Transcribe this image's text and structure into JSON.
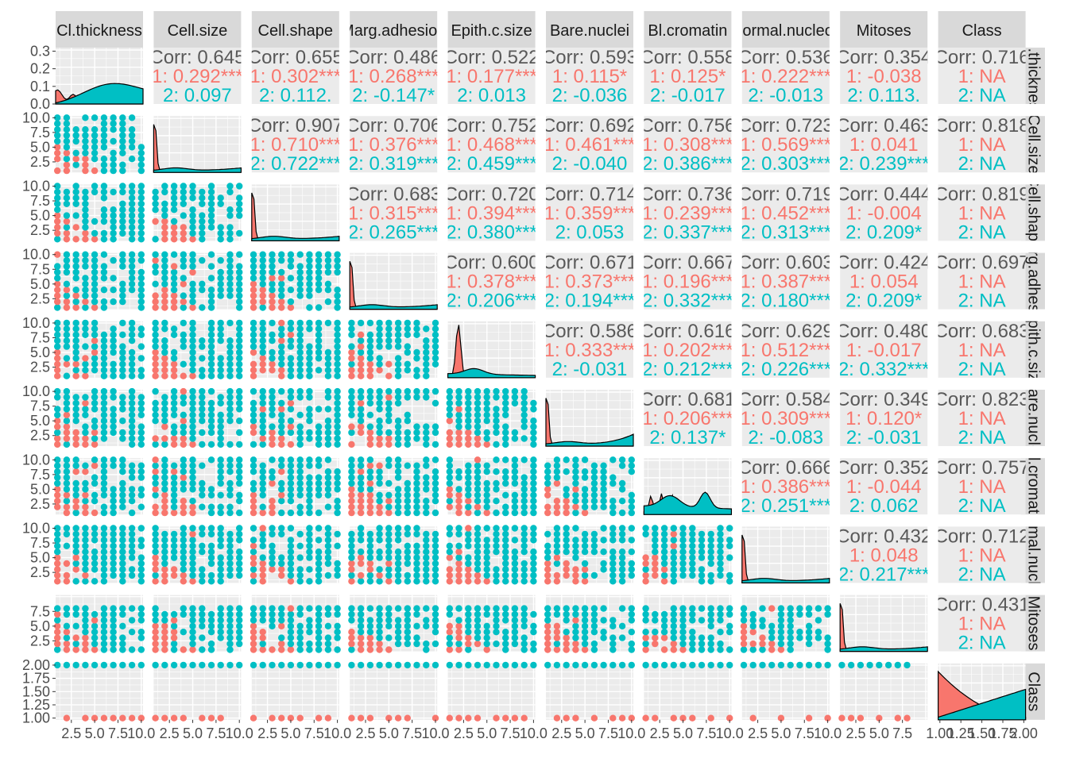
{
  "chart_data": {
    "type": "scatter-matrix",
    "variables": [
      "Cl.thickness",
      "Cell.size",
      "Cell.shape",
      "Marg.adhesion",
      "Epith.c.size",
      "Bare.nuclei",
      "Bl.cromatin",
      "Normal.nucleoli",
      "Mitoses",
      "Class"
    ],
    "strip_labels": {
      "top": [
        "Cl.thickness",
        "Cell.size",
        "Cell.shape",
        "Marg.adhesion",
        "Epith.c.size",
        "Bare.nuclei",
        "Bl.cromatin",
        "Normal.nucleoli",
        "Mitoses",
        "Class"
      ],
      "right": [
        "Cl.thickness",
        "Cell.size",
        "Cell.shape",
        "Marg.adhesion",
        "Epith.c.size",
        "Bare.nuclei",
        "Bl.cromatin",
        "Normal.nucleoli",
        "Mitoses",
        "Class"
      ]
    },
    "groups": [
      {
        "name": "1",
        "color": "#F8766D"
      },
      {
        "name": "2",
        "color": "#00BFC4"
      }
    ],
    "correlations": [
      {
        "row": 0,
        "col": 1,
        "corr": "Corr: 0.645",
        "g1": "1: 0.292***",
        "g2": "2: 0.097"
      },
      {
        "row": 0,
        "col": 2,
        "corr": "Corr: 0.655",
        "g1": "1: 0.302***",
        "g2": "2: 0.112."
      },
      {
        "row": 0,
        "col": 3,
        "corr": "Corr: 0.486",
        "g1": "1: 0.268***",
        "g2": "2: -0.147*"
      },
      {
        "row": 0,
        "col": 4,
        "corr": "Corr: 0.522",
        "g1": "1: 0.177***",
        "g2": "2: 0.013"
      },
      {
        "row": 0,
        "col": 5,
        "corr": "Corr: 0.593",
        "g1": "1: 0.115*",
        "g2": "2: -0.036"
      },
      {
        "row": 0,
        "col": 6,
        "corr": "Corr: 0.558",
        "g1": "1: 0.125*",
        "g2": "2: -0.017"
      },
      {
        "row": 0,
        "col": 7,
        "corr": "Corr: 0.536",
        "g1": "1: 0.222***",
        "g2": "2: -0.013"
      },
      {
        "row": 0,
        "col": 8,
        "corr": "Corr: 0.354",
        "g1": "1: -0.038",
        "g2": "2: 0.113."
      },
      {
        "row": 0,
        "col": 9,
        "corr": "Corr: 0.716",
        "g1": "1: NA",
        "g2": "2: NA"
      },
      {
        "row": 1,
        "col": 2,
        "corr": "Corr: 0.907",
        "g1": "1: 0.710***",
        "g2": "2: 0.722***"
      },
      {
        "row": 1,
        "col": 3,
        "corr": "Corr: 0.706",
        "g1": "1: 0.376***",
        "g2": "2: 0.319***"
      },
      {
        "row": 1,
        "col": 4,
        "corr": "Corr: 0.752",
        "g1": "1: 0.468***",
        "g2": "2: 0.459***"
      },
      {
        "row": 1,
        "col": 5,
        "corr": "Corr: 0.692",
        "g1": "1: 0.461***",
        "g2": "2: -0.040"
      },
      {
        "row": 1,
        "col": 6,
        "corr": "Corr: 0.756",
        "g1": "1: 0.308***",
        "g2": "2: 0.386***"
      },
      {
        "row": 1,
        "col": 7,
        "corr": "Corr: 0.723",
        "g1": "1: 0.569***",
        "g2": "2: 0.303***"
      },
      {
        "row": 1,
        "col": 8,
        "corr": "Corr: 0.463",
        "g1": "1: 0.041",
        "g2": "2: 0.239***"
      },
      {
        "row": 1,
        "col": 9,
        "corr": "Corr: 0.818",
        "g1": "1: NA",
        "g2": "2: NA"
      },
      {
        "row": 2,
        "col": 3,
        "corr": "Corr: 0.683",
        "g1": "1: 0.315***",
        "g2": "2: 0.265***"
      },
      {
        "row": 2,
        "col": 4,
        "corr": "Corr: 0.720",
        "g1": "1: 0.394***",
        "g2": "2: 0.380***"
      },
      {
        "row": 2,
        "col": 5,
        "corr": "Corr: 0.714",
        "g1": "1: 0.359***",
        "g2": "2: 0.053"
      },
      {
        "row": 2,
        "col": 6,
        "corr": "Corr: 0.736",
        "g1": "1: 0.239***",
        "g2": "2: 0.337***"
      },
      {
        "row": 2,
        "col": 7,
        "corr": "Corr: 0.719",
        "g1": "1: 0.452***",
        "g2": "2: 0.313***"
      },
      {
        "row": 2,
        "col": 8,
        "corr": "Corr: 0.444",
        "g1": "1: -0.004",
        "g2": "2: 0.209*"
      },
      {
        "row": 2,
        "col": 9,
        "corr": "Corr: 0.819",
        "g1": "1: NA",
        "g2": "2: NA"
      },
      {
        "row": 3,
        "col": 4,
        "corr": "Corr: 0.600",
        "g1": "1: 0.378***",
        "g2": "2: 0.206***"
      },
      {
        "row": 3,
        "col": 5,
        "corr": "Corr: 0.671",
        "g1": "1: 0.373***",
        "g2": "2: 0.194***"
      },
      {
        "row": 3,
        "col": 6,
        "corr": "Corr: 0.667",
        "g1": "1: 0.196***",
        "g2": "2: 0.332***"
      },
      {
        "row": 3,
        "col": 7,
        "corr": "Corr: 0.603",
        "g1": "1: 0.387***",
        "g2": "2: 0.180***"
      },
      {
        "row": 3,
        "col": 8,
        "corr": "Corr: 0.424",
        "g1": "1: 0.054",
        "g2": "2: 0.209*"
      },
      {
        "row": 3,
        "col": 9,
        "corr": "Corr: 0.697",
        "g1": "1: NA",
        "g2": "2: NA"
      },
      {
        "row": 4,
        "col": 5,
        "corr": "Corr: 0.586",
        "g1": "1: 0.333***",
        "g2": "2: -0.031"
      },
      {
        "row": 4,
        "col": 6,
        "corr": "Corr: 0.616",
        "g1": "1: 0.202***",
        "g2": "2: 0.212***"
      },
      {
        "row": 4,
        "col": 7,
        "corr": "Corr: 0.629",
        "g1": "1: 0.512***",
        "g2": "2: 0.226***"
      },
      {
        "row": 4,
        "col": 8,
        "corr": "Corr: 0.480",
        "g1": "1: -0.017",
        "g2": "2: 0.332***"
      },
      {
        "row": 4,
        "col": 9,
        "corr": "Corr: 0.683",
        "g1": "1: NA",
        "g2": "2: NA"
      },
      {
        "row": 5,
        "col": 6,
        "corr": "Corr: 0.681",
        "g1": "1: 0.206***",
        "g2": "2: 0.137*"
      },
      {
        "row": 5,
        "col": 7,
        "corr": "Corr: 0.584",
        "g1": "1: 0.309***",
        "g2": "2: -0.083"
      },
      {
        "row": 5,
        "col": 8,
        "corr": "Corr: 0.349",
        "g1": "1: 0.120*",
        "g2": "2: -0.031"
      },
      {
        "row": 5,
        "col": 9,
        "corr": "Corr: 0.823",
        "g1": "1: NA",
        "g2": "2: NA"
      },
      {
        "row": 6,
        "col": 7,
        "corr": "Corr: 0.666",
        "g1": "1: 0.386***",
        "g2": "2: 0.251***"
      },
      {
        "row": 6,
        "col": 8,
        "corr": "Corr: 0.352",
        "g1": "1: -0.044",
        "g2": "2: 0.062"
      },
      {
        "row": 6,
        "col": 9,
        "corr": "Corr: 0.757",
        "g1": "1: NA",
        "g2": "2: NA"
      },
      {
        "row": 7,
        "col": 8,
        "corr": "Corr: 0.432",
        "g1": "1: 0.048",
        "g2": "2: 0.217***"
      },
      {
        "row": 7,
        "col": 9,
        "corr": "Corr: 0.712",
        "g1": "1: NA",
        "g2": "2: NA"
      },
      {
        "row": 8,
        "col": 9,
        "corr": "Corr: 0.431",
        "g1": "1: NA",
        "g2": "2: NA"
      }
    ],
    "y_axis_ticks": [
      [
        "0.0",
        "0.1",
        "0.2",
        "0.3"
      ],
      [
        "2.5",
        "5.0",
        "7.5",
        "10.0"
      ],
      [
        "2.5",
        "5.0",
        "7.5",
        "10.0"
      ],
      [
        "2.5",
        "5.0",
        "7.5",
        "10.0"
      ],
      [
        "2.5",
        "5.0",
        "7.5",
        "10.0"
      ],
      [
        "2.5",
        "5.0",
        "7.5",
        "10.0"
      ],
      [
        "2.5",
        "5.0",
        "7.5",
        "10.0"
      ],
      [
        "2.5",
        "5.0",
        "7.5",
        "10.0"
      ],
      [
        "2.5",
        "5.0",
        "7.5"
      ],
      [
        "1.00",
        "1.25",
        "1.50",
        "1.75",
        "2.00"
      ]
    ],
    "x_axis_ticks": [
      [
        "2.5",
        "5.0",
        "7.5",
        "10.0"
      ],
      [
        "2.5",
        "5.0",
        "7.5",
        "10.0"
      ],
      [
        "2.5",
        "5.0",
        "7.5",
        "10.0"
      ],
      [
        "2.5",
        "5.0",
        "7.5",
        "10.0"
      ],
      [
        "2.5",
        "5.0",
        "7.5",
        "10.0"
      ],
      [
        "2.5",
        "5.0",
        "7.5",
        "10.0"
      ],
      [
        "2.5",
        "5.0",
        "7.5",
        "10.0"
      ],
      [
        "2.5",
        "5.0",
        "7.5",
        "10.0"
      ],
      [
        "2.5",
        "5.0",
        "7.5"
      ],
      [
        "1.00",
        "1.25",
        "1.50",
        "1.75",
        "2.00"
      ]
    ],
    "ranges": [
      [
        1,
        10
      ],
      [
        1,
        10
      ],
      [
        1,
        10
      ],
      [
        1,
        10
      ],
      [
        1,
        10
      ],
      [
        1,
        10
      ],
      [
        1,
        10
      ],
      [
        1,
        10
      ],
      [
        1,
        10
      ],
      [
        1,
        2
      ]
    ],
    "density_ylim": [
      0,
      0.32
    ],
    "legend": "none",
    "grid": true
  }
}
